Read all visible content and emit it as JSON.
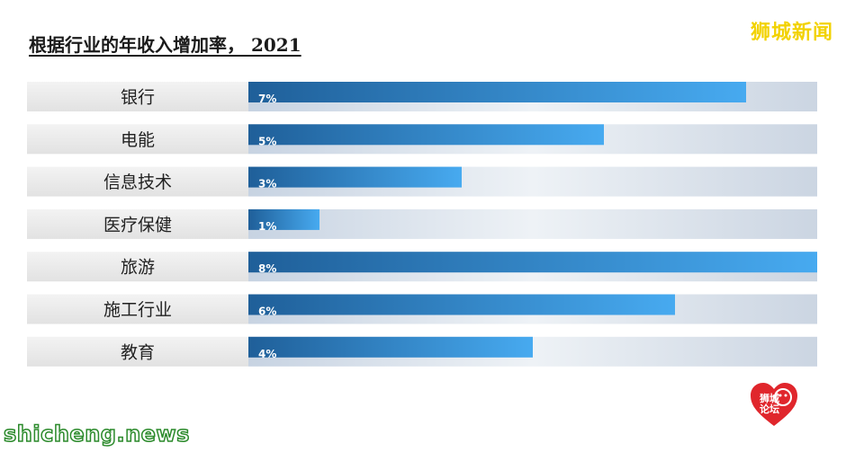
{
  "header": {
    "title": "根据行业的年收入增加率， 2021",
    "brand": "狮城新闻"
  },
  "footer": {
    "watermark": "shicheng.news",
    "seal_text": "狮城论坛"
  },
  "colors": {
    "bar_dark": "#1f5f99",
    "bar_light": "#47aaf0",
    "track": "#d8e0ea",
    "label_bg": "#ececec",
    "brand": "#f2d200",
    "seal": "#e0262c"
  },
  "chart_data": {
    "type": "bar",
    "orientation": "horizontal",
    "title": "根据行业的年收入增加率， 2021",
    "categories": [
      "银行",
      "电能",
      "信息技术",
      "医疗保健",
      "旅游",
      "施工行业",
      "教育"
    ],
    "values": [
      7,
      5,
      3,
      1,
      8,
      6,
      4
    ],
    "value_labels": [
      "7%",
      "5%",
      "3%",
      "1%",
      "8%",
      "6%",
      "4%"
    ],
    "xlim": [
      0,
      8
    ],
    "grid": false,
    "legend": "none"
  }
}
